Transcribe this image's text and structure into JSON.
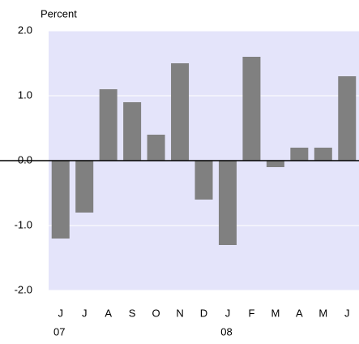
{
  "chart_data": {
    "type": "bar",
    "y_label": "Percent",
    "categories": [
      "J",
      "J",
      "A",
      "S",
      "O",
      "N",
      "D",
      "J",
      "F",
      "M",
      "A",
      "M",
      "J"
    ],
    "values": [
      -1.2,
      -0.8,
      1.1,
      0.9,
      0.4,
      1.5,
      -0.6,
      -1.3,
      1.6,
      -0.1,
      0.2,
      0.2,
      1.3
    ],
    "color": "#808080",
    "x_groups": [
      {
        "label": "07",
        "start": 0
      },
      {
        "label": "08",
        "start": 7
      }
    ],
    "ylim": [
      -2,
      2
    ],
    "yticks": [
      {
        "value": -2,
        "label": "-2.0"
      },
      {
        "value": -1,
        "label": "-1.0"
      },
      {
        "value": 0,
        "label": "0.0"
      },
      {
        "value": 1,
        "label": "1.0"
      },
      {
        "value": 2,
        "label": "2.0"
      }
    ],
    "grid": true
  }
}
